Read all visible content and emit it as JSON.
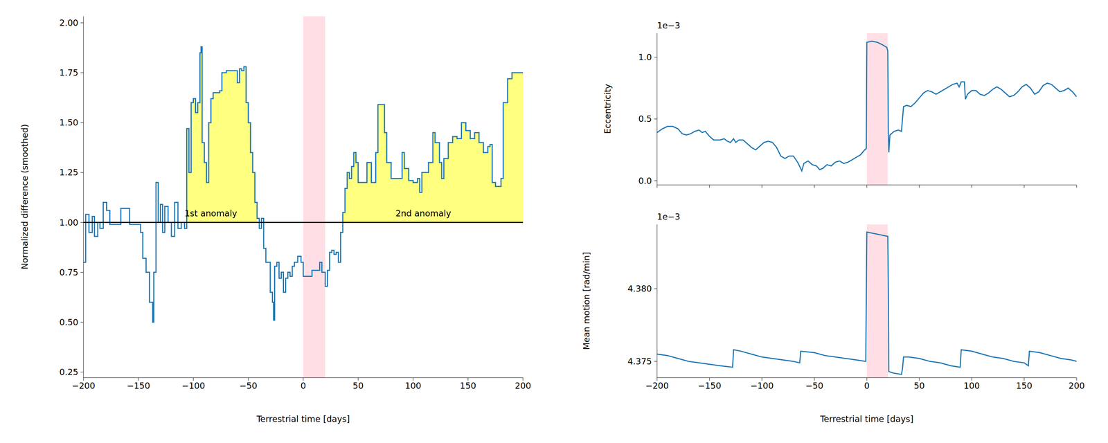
{
  "chart_data": [
    {
      "type": "line",
      "x_label": "Terrestrial time [days]",
      "y_label": "Normalized difference (smoothed)",
      "xlim": [
        -200,
        200
      ],
      "xticks": [
        {
          "value": -200,
          "label": "−200"
        },
        {
          "value": -150,
          "label": "−150"
        },
        {
          "value": -100,
          "label": "−100"
        },
        {
          "value": -50,
          "label": "−50"
        },
        0,
        50,
        100,
        150,
        200
      ],
      "ylim": [
        0.222,
        2.033
      ],
      "yticks": [
        0.25,
        {
          "value": 0.5,
          "label": "0.50"
        },
        0.75,
        {
          "value": 1,
          "label": "1.00"
        },
        1.25,
        {
          "value": 1.5,
          "label": "1.50"
        },
        1.75,
        {
          "value": 2,
          "label": "2.00"
        }
      ],
      "highlight": [
        0,
        20
      ],
      "reference_line": 1,
      "annotations": [
        {
          "text": "1st anomaly",
          "x": -108,
          "y": 1.046,
          "x_range": [
            -107,
            -42
          ]
        },
        {
          "text": "2nd anomaly",
          "x": 84,
          "y": 1.046,
          "x_range": [
            35,
            200
          ]
        }
      ],
      "x": [
        -200,
        -198,
        -195,
        -192,
        -190,
        -187,
        -185,
        -182,
        -179,
        -176,
        -170,
        -166,
        -160,
        -158,
        -150,
        -148,
        -146,
        -143,
        -140,
        -137,
        -136,
        -134,
        -132,
        -130,
        -128,
        -126,
        -123,
        -120,
        -117,
        -114,
        -111,
        -108,
        -106,
        -104,
        -102,
        -100,
        -98,
        -96,
        -94,
        -93,
        -92,
        -90,
        -88,
        -86,
        -84,
        -82,
        -80,
        -76,
        -74,
        -70,
        -62,
        -60,
        -58,
        -56,
        -54,
        -52,
        -50,
        -48,
        -46,
        -44,
        -42,
        -40,
        -38,
        -36,
        -34,
        -32,
        -30,
        -28,
        -27,
        -26,
        -24,
        -22,
        -20,
        -18,
        -16,
        -14,
        -12,
        -10,
        -8,
        -5,
        -2,
        0,
        4,
        8,
        12,
        15,
        17,
        20,
        22,
        24,
        26,
        28,
        30,
        32,
        34,
        36,
        38,
        40,
        42,
        44,
        46,
        48,
        50,
        54,
        58,
        62,
        66,
        68,
        72,
        74,
        76,
        80,
        86,
        90,
        92,
        96,
        100,
        104,
        106,
        108,
        112,
        114,
        118,
        120,
        124,
        126,
        128,
        132,
        136,
        140,
        144,
        146,
        148,
        152,
        156,
        160,
        164,
        168,
        170,
        172,
        175,
        178,
        180,
        182,
        186,
        190,
        200
      ],
      "series": [
        {
          "color": "#1f77b4",
          "line_style": "steps",
          "values": [
            0.8,
            1.04,
            0.95,
            1.03,
            0.93,
            1.0,
            0.97,
            1.1,
            1.06,
            0.99,
            0.99,
            1.07,
            1.07,
            0.99,
            0.99,
            0.95,
            0.82,
            0.75,
            0.6,
            0.5,
            0.75,
            1.2,
            1.0,
            1.09,
            0.95,
            1.08,
            1.0,
            0.93,
            1.1,
            0.97,
            1.0,
            0.97,
            1.47,
            1.25,
            1.6,
            1.62,
            1.55,
            1.6,
            1.85,
            1.88,
            1.4,
            1.3,
            1.2,
            1.5,
            1.62,
            1.65,
            1.65,
            1.66,
            1.75,
            1.76,
            1.76,
            1.7,
            1.77,
            1.76,
            1.78,
            1.6,
            1.5,
            1.35,
            1.25,
            1.1,
            1.02,
            0.97,
            1.02,
            0.87,
            0.8,
            0.8,
            0.65,
            0.6,
            0.51,
            0.78,
            0.8,
            0.72,
            0.75,
            0.65,
            0.72,
            0.75,
            0.73,
            0.78,
            0.8,
            0.83,
            0.8,
            0.73,
            0.73,
            0.76,
            0.76,
            0.8,
            0.75,
            0.68,
            0.76,
            0.85,
            0.86,
            0.84,
            0.85,
            0.8,
            0.95,
            1.05,
            1.17,
            1.25,
            1.22,
            1.28,
            1.35,
            1.3,
            1.2,
            1.2,
            1.3,
            1.2,
            1.35,
            1.59,
            1.59,
            1.45,
            1.3,
            1.22,
            1.22,
            1.35,
            1.27,
            1.21,
            1.2,
            1.22,
            1.15,
            1.25,
            1.25,
            1.3,
            1.45,
            1.4,
            1.3,
            1.22,
            1.32,
            1.4,
            1.43,
            1.42,
            1.5,
            1.5,
            1.46,
            1.42,
            1.45,
            1.4,
            1.35,
            1.38,
            1.39,
            1.2,
            1.18,
            1.18,
            1.22,
            1.6,
            1.72,
            1.75,
            1.75
          ]
        }
      ]
    },
    {
      "type": "line",
      "y_label": "Eccentricity",
      "axis_offset": "1e−3",
      "tick_labels": "y",
      "xlim": [
        -200,
        200
      ],
      "xticks": [
        {
          "value": -200,
          "label": "−200"
        },
        {
          "value": -150,
          "label": "−150"
        },
        {
          "value": -100,
          "label": "−100"
        },
        {
          "value": -50,
          "label": "−50"
        },
        0,
        50,
        100,
        150,
        200
      ],
      "ylim": [
        -0.034,
        1.194
      ],
      "yticks": [
        {
          "value": 0,
          "label": "0.0"
        },
        0.5,
        {
          "value": 1,
          "label": "1.0"
        }
      ],
      "highlight": [
        0,
        20
      ],
      "x": [
        -200,
        -195,
        -190,
        -185,
        -180,
        -176,
        -172,
        -168,
        -164,
        -160,
        -157,
        -154,
        -150,
        -146,
        -140,
        -136,
        -133,
        -130,
        -127,
        -125,
        -122,
        -118,
        -114,
        -110,
        -106,
        -102,
        -98,
        -94,
        -90,
        -86,
        -82,
        -78,
        -74,
        -70,
        -66,
        -62,
        -60,
        -56,
        -52,
        -48,
        -45,
        -42,
        -38,
        -34,
        -30,
        -26,
        -22,
        -18,
        -14,
        -10,
        -6,
        -2,
        -0.5,
        0,
        5,
        10,
        15,
        19,
        20,
        20.5,
        21,
        22,
        26,
        30,
        33,
        35,
        38,
        42,
        46,
        50,
        54,
        58,
        62,
        66,
        70,
        74,
        78,
        82,
        86,
        88,
        90,
        93,
        94,
        96,
        100,
        104,
        108,
        112,
        116,
        120,
        124,
        128,
        132,
        136,
        140,
        144,
        148,
        152,
        156,
        160,
        164,
        168,
        172,
        176,
        180,
        184,
        188,
        192,
        196,
        200
      ],
      "series": [
        {
          "color": "#1f77b4",
          "line_style": "solid",
          "values": [
            0.39,
            0.42,
            0.44,
            0.44,
            0.42,
            0.38,
            0.37,
            0.38,
            0.4,
            0.41,
            0.39,
            0.4,
            0.36,
            0.33,
            0.33,
            0.34,
            0.32,
            0.31,
            0.34,
            0.31,
            0.33,
            0.33,
            0.3,
            0.27,
            0.25,
            0.28,
            0.31,
            0.32,
            0.31,
            0.27,
            0.2,
            0.18,
            0.2,
            0.2,
            0.15,
            0.08,
            0.14,
            0.16,
            0.13,
            0.12,
            0.09,
            0.1,
            0.13,
            0.12,
            0.15,
            0.16,
            0.14,
            0.15,
            0.17,
            0.19,
            0.21,
            0.25,
            0.26,
            1.12,
            1.13,
            1.12,
            1.1,
            1.08,
            1.05,
            0.38,
            0.23,
            0.37,
            0.4,
            0.41,
            0.4,
            0.6,
            0.61,
            0.6,
            0.63,
            0.67,
            0.71,
            0.73,
            0.72,
            0.7,
            0.72,
            0.74,
            0.76,
            0.78,
            0.79,
            0.76,
            0.8,
            0.8,
            0.66,
            0.7,
            0.73,
            0.73,
            0.7,
            0.69,
            0.71,
            0.74,
            0.76,
            0.74,
            0.71,
            0.68,
            0.69,
            0.72,
            0.76,
            0.78,
            0.75,
            0.7,
            0.72,
            0.77,
            0.79,
            0.78,
            0.75,
            0.72,
            0.73,
            0.75,
            0.72,
            0.68
          ]
        }
      ]
    },
    {
      "type": "line",
      "x_label": "Terrestrial time [days]",
      "y_label": "Mean motion [rad/min]",
      "axis_offset": "1e−3",
      "xlim": [
        -200,
        200
      ],
      "xticks": [
        {
          "value": -200,
          "label": "−200"
        },
        {
          "value": -150,
          "label": "−150"
        },
        {
          "value": -100,
          "label": "−100"
        },
        {
          "value": -50,
          "label": "−50"
        },
        0,
        50,
        100,
        150,
        200
      ],
      "ylim": [
        4.37388,
        4.38442
      ],
      "yticks": [
        4.375,
        {
          "value": 4.38,
          "label": "4.380"
        }
      ],
      "highlight": [
        0,
        20
      ],
      "x": [
        -200,
        -190,
        -180,
        -170,
        -160,
        -150,
        -140,
        -128,
        -127,
        -120,
        -110,
        -100,
        -90,
        -80,
        -70,
        -64,
        -63,
        -50,
        -40,
        -30,
        -20,
        -10,
        -1,
        0,
        20,
        20.5,
        21,
        25,
        33,
        34,
        35,
        40,
        50,
        60,
        70,
        80,
        89,
        90,
        100,
        110,
        120,
        130,
        140,
        150,
        154,
        155,
        165,
        175,
        185,
        195,
        200
      ],
      "series": [
        {
          "color": "#1f77b4",
          "line_style": "solid",
          "values": [
            4.3755,
            4.3754,
            4.3752,
            4.375,
            4.3749,
            4.3748,
            4.3747,
            4.3746,
            4.3758,
            4.3757,
            4.3755,
            4.3753,
            4.3752,
            4.3751,
            4.375,
            4.3749,
            4.3757,
            4.3756,
            4.3754,
            4.3753,
            4.3752,
            4.3751,
            4.375,
            4.3839,
            4.3836,
            4.38,
            4.3743,
            4.3742,
            4.3741,
            4.3745,
            4.3753,
            4.3753,
            4.3752,
            4.375,
            4.3749,
            4.3747,
            4.3746,
            4.3758,
            4.3757,
            4.3755,
            4.3753,
            4.3752,
            4.375,
            4.3749,
            4.3747,
            4.3757,
            4.3756,
            4.3754,
            4.3752,
            4.3751,
            4.375
          ]
        }
      ]
    }
  ]
}
